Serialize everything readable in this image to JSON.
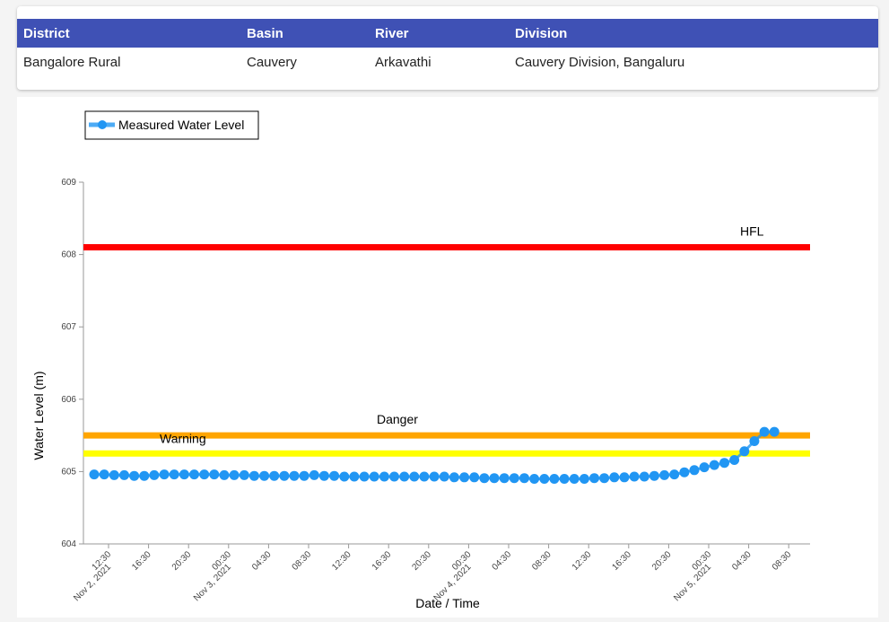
{
  "info_table": {
    "headers": [
      "District",
      "Basin",
      "River",
      "Division"
    ],
    "row": [
      "Bangalore Rural",
      "Cauvery",
      "Arkavathi",
      "Cauvery Division, Bangaluru"
    ]
  },
  "legend": {
    "label": "Measured Water Level",
    "color": "#2196f3"
  },
  "thresholds": {
    "hfl": {
      "label": "HFL",
      "value": 608.1,
      "color": "#ff0000"
    },
    "danger": {
      "label": "Danger",
      "value": 605.5,
      "color": "#ffa500"
    },
    "warning": {
      "label": "Warning",
      "value": 605.25,
      "color": "#ffff00"
    }
  },
  "chart_data": {
    "type": "line",
    "xlabel": "Date / Time",
    "ylabel": "Water Level (m)",
    "ylim": [
      604,
      609
    ],
    "yticks": [
      "604",
      "605",
      "606",
      "607",
      "608",
      "609"
    ],
    "xticks": [
      "12:30",
      "16:30",
      "20:30",
      "00:30",
      "04:30",
      "08:30",
      "12:30",
      "16:30",
      "20:30",
      "00:30",
      "04:30",
      "08:30",
      "12:30",
      "16:30",
      "20:30",
      "00:30",
      "04:30",
      "08:30"
    ],
    "date_labels": [
      "Nov 2, 2021",
      "Nov 3, 2021",
      "Nov 4, 2021",
      "Nov 5, 2021"
    ],
    "legend_position": "top-left",
    "grid": false,
    "series": [
      {
        "name": "Measured Water Level",
        "x_start": "Nov 2, 2021 11:00",
        "x_interval_hours": 1,
        "values": [
          604.96,
          604.96,
          604.95,
          604.95,
          604.94,
          604.94,
          604.95,
          604.96,
          604.96,
          604.96,
          604.96,
          604.96,
          604.96,
          604.95,
          604.95,
          604.95,
          604.94,
          604.94,
          604.94,
          604.94,
          604.94,
          604.94,
          604.95,
          604.94,
          604.94,
          604.93,
          604.93,
          604.93,
          604.93,
          604.93,
          604.93,
          604.93,
          604.93,
          604.93,
          604.93,
          604.93,
          604.92,
          604.92,
          604.92,
          604.91,
          604.91,
          604.91,
          604.91,
          604.91,
          604.9,
          604.9,
          604.9,
          604.9,
          604.9,
          604.9,
          604.91,
          604.91,
          604.92,
          604.92,
          604.93,
          604.93,
          604.94,
          604.95,
          604.96,
          604.99,
          605.02,
          605.06,
          605.09,
          605.12,
          605.16,
          605.28,
          605.42,
          605.55,
          605.55
        ]
      }
    ]
  }
}
